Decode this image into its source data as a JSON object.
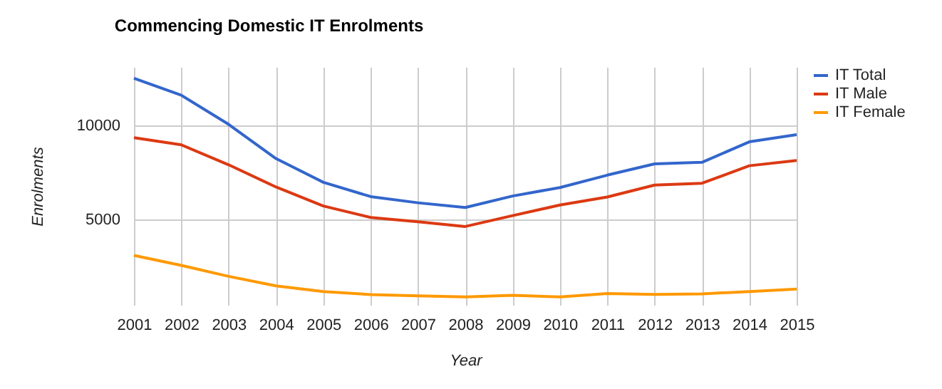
{
  "chart_data": {
    "type": "line",
    "title": "Commencing Domestic IT Enrolments",
    "xlabel": "Year",
    "ylabel": "Enrolments",
    "categories": [
      "2001",
      "2002",
      "2003",
      "2004",
      "2005",
      "2006",
      "2007",
      "2008",
      "2009",
      "2010",
      "2011",
      "2012",
      "2013",
      "2014",
      "2015"
    ],
    "series": [
      {
        "name": "IT Total",
        "color": "#3366cc",
        "values": [
          12500,
          11600,
          10050,
          8230,
          6970,
          6210,
          5880,
          5630,
          6240,
          6690,
          7350,
          7950,
          8030,
          9120,
          9500
        ]
      },
      {
        "name": "IT Male",
        "color": "#dc3912",
        "values": [
          9340,
          8960,
          7900,
          6720,
          5710,
          5100,
          4870,
          4620,
          5200,
          5760,
          6190,
          6820,
          6920,
          7850,
          8130
        ]
      },
      {
        "name": "IT Female",
        "color": "#ff9900",
        "values": [
          3080,
          2550,
          1970,
          1460,
          1160,
          1000,
          930,
          880,
          960,
          880,
          1060,
          1010,
          1040,
          1160,
          1290
        ]
      }
    ],
    "ylim": [
      450,
      13100
    ],
    "yticks": [
      5000,
      10000
    ],
    "grid": true,
    "legend": "top right"
  }
}
